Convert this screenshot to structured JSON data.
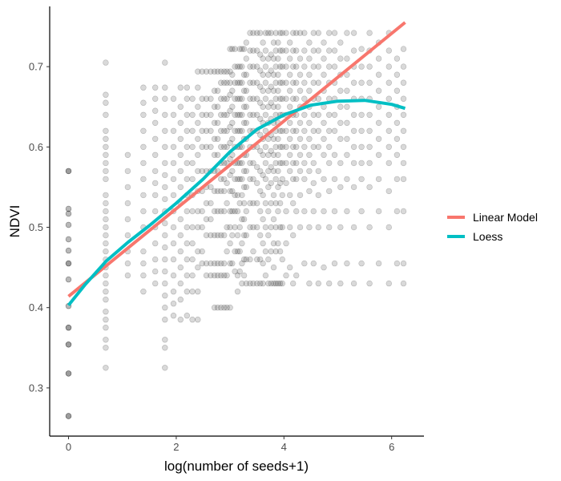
{
  "chart_data": {
    "type": "scatter",
    "xlabel": "log(number of seeds+1)",
    "ylabel": "NDVI",
    "xlim": [
      -0.35,
      6.6
    ],
    "ylim": [
      0.24,
      0.775
    ],
    "x_ticks": [
      0,
      2,
      4,
      6
    ],
    "y_ticks": [
      0.3,
      0.4,
      0.5,
      0.6,
      0.7
    ],
    "grid": false,
    "legend_position": "right",
    "point_color": "#000000",
    "point_alpha": 0.15,
    "series": [
      {
        "name": "Linear Model",
        "kind": "line",
        "color": "#F8766D",
        "x": [
          0,
          6.25
        ],
        "y": [
          0.414,
          0.755
        ]
      },
      {
        "name": "Loess",
        "kind": "line",
        "color": "#00BFC4",
        "x": [
          0,
          0.3,
          0.7,
          1.1,
          1.5,
          2.0,
          2.5,
          3.0,
          3.5,
          4.0,
          4.5,
          5.0,
          5.5,
          6.0,
          6.25
        ],
        "y": [
          0.403,
          0.428,
          0.458,
          0.481,
          0.502,
          0.53,
          0.56,
          0.594,
          0.622,
          0.64,
          0.652,
          0.657,
          0.658,
          0.653,
          0.648
        ]
      }
    ],
    "scatter_columns": [
      {
        "x": 0.0,
        "y": [
          0.265,
          0.265,
          0.265,
          0.318,
          0.318,
          0.318,
          0.354,
          0.354,
          0.354,
          0.375,
          0.375,
          0.375,
          0.402,
          0.402,
          0.435,
          0.435,
          0.455,
          0.455,
          0.455,
          0.471,
          0.471,
          0.485,
          0.485,
          0.503,
          0.503,
          0.517,
          0.517,
          0.523,
          0.523,
          0.57,
          0.57,
          0.57
        ]
      },
      {
        "x": 0.69,
        "y": [
          0.325,
          0.35,
          0.36,
          0.375,
          0.385,
          0.395,
          0.41,
          0.42,
          0.43,
          0.44,
          0.45,
          0.46,
          0.47,
          0.48,
          0.49,
          0.5,
          0.51,
          0.52,
          0.53,
          0.54,
          0.56,
          0.57,
          0.58,
          0.59,
          0.6,
          0.61,
          0.62,
          0.64,
          0.655,
          0.665,
          0.705
        ]
      },
      {
        "x": 1.1,
        "y": [
          0.44,
          0.455,
          0.47,
          0.49,
          0.51,
          0.53,
          0.55,
          0.57,
          0.59
        ]
      },
      {
        "x": 1.39,
        "y": [
          0.42,
          0.44,
          0.455,
          0.47,
          0.5,
          0.52,
          0.54,
          0.56,
          0.58,
          0.6,
          0.62,
          0.64,
          0.655,
          0.674
        ]
      },
      {
        "x": 1.61,
        "y": [
          0.43,
          0.445,
          0.46,
          0.48,
          0.5,
          0.52,
          0.54,
          0.555,
          0.57,
          0.59,
          0.61,
          0.63,
          0.645,
          0.66,
          0.674
        ]
      },
      {
        "x": 1.79,
        "y": [
          0.325,
          0.35,
          0.36,
          0.385,
          0.4,
          0.415,
          0.43,
          0.445,
          0.46,
          0.475,
          0.49,
          0.505,
          0.52,
          0.535,
          0.55,
          0.565,
          0.58,
          0.6,
          0.62,
          0.64,
          0.66,
          0.674,
          0.705
        ]
      },
      {
        "x": 1.95,
        "y": [
          0.39,
          0.405,
          0.42,
          0.44,
          0.46,
          0.48,
          0.5,
          0.52,
          0.54,
          0.56,
          0.58,
          0.6,
          0.62,
          0.64,
          0.66
        ]
      },
      {
        "x": 2.08,
        "y": [
          0.385,
          0.41,
          0.43,
          0.45,
          0.47,
          0.49,
          0.51,
          0.53,
          0.55,
          0.57,
          0.59,
          0.61,
          0.63,
          0.65,
          0.674
        ]
      },
      {
        "x": 2.2,
        "y": [
          0.39,
          0.42,
          0.44,
          0.46,
          0.48,
          0.5,
          0.52,
          0.54,
          0.56,
          0.58,
          0.6,
          0.62,
          0.64,
          0.66,
          0.674
        ]
      },
      {
        "x": 2.3,
        "y": [
          0.385,
          0.42,
          0.44,
          0.46,
          0.48,
          0.5,
          0.52,
          0.54,
          0.56,
          0.58,
          0.6,
          0.62,
          0.64,
          0.66
        ]
      },
      {
        "x": 2.4,
        "y": [
          0.385,
          0.42,
          0.45,
          0.47,
          0.5,
          0.52,
          0.545,
          0.57,
          0.59,
          0.61,
          0.63,
          0.65,
          0.674,
          0.694
        ]
      },
      {
        "x": 2.48,
        "y": [
          0.455,
          0.47,
          0.5,
          0.52,
          0.545,
          0.57,
          0.6,
          0.62,
          0.64,
          0.66,
          0.694
        ]
      },
      {
        "x": 2.56,
        "y": [
          0.44,
          0.455,
          0.49,
          0.51,
          0.53,
          0.55,
          0.57,
          0.6,
          0.62,
          0.64,
          0.66,
          0.694
        ]
      },
      {
        "x": 2.64,
        "y": [
          0.44,
          0.455,
          0.49,
          0.51,
          0.53,
          0.55,
          0.57,
          0.6,
          0.62,
          0.64,
          0.66,
          0.694
        ]
      },
      {
        "x": 2.71,
        "y": [
          0.4,
          0.44,
          0.455,
          0.49,
          0.52,
          0.545,
          0.57,
          0.59,
          0.61,
          0.63,
          0.65,
          0.67,
          0.694
        ]
      },
      {
        "x": 2.77,
        "y": [
          0.4,
          0.44,
          0.455,
          0.49,
          0.52,
          0.545,
          0.57,
          0.59,
          0.61,
          0.63,
          0.65,
          0.67,
          0.694
        ]
      },
      {
        "x": 2.83,
        "y": [
          0.4,
          0.44,
          0.455,
          0.49,
          0.52,
          0.545,
          0.56,
          0.58,
          0.6,
          0.62,
          0.64,
          0.66,
          0.68,
          0.694
        ]
      },
      {
        "x": 2.89,
        "y": [
          0.4,
          0.44,
          0.455,
          0.49,
          0.52,
          0.545,
          0.56,
          0.58,
          0.6,
          0.62,
          0.64,
          0.66,
          0.68,
          0.694
        ]
      },
      {
        "x": 2.94,
        "y": [
          0.4,
          0.44,
          0.47,
          0.5,
          0.53,
          0.555,
          0.58,
          0.6,
          0.62,
          0.64,
          0.66,
          0.68,
          0.694
        ]
      },
      {
        "x": 3.0,
        "y": [
          0.4,
          0.455,
          0.48,
          0.5,
          0.52,
          0.545,
          0.565,
          0.585,
          0.605,
          0.625,
          0.645,
          0.665,
          0.68,
          0.694,
          0.722
        ]
      },
      {
        "x": 3.04,
        "y": [
          0.455,
          0.49,
          0.52,
          0.545,
          0.57,
          0.59,
          0.61,
          0.63,
          0.65,
          0.67,
          0.69,
          0.722
        ]
      },
      {
        "x": 3.09,
        "y": [
          0.445,
          0.47,
          0.5,
          0.52,
          0.54,
          0.56,
          0.58,
          0.6,
          0.62,
          0.64,
          0.66,
          0.68,
          0.7,
          0.722
        ]
      },
      {
        "x": 3.14,
        "y": [
          0.42,
          0.44,
          0.47,
          0.49,
          0.52,
          0.54,
          0.56,
          0.58,
          0.6,
          0.62,
          0.64,
          0.66,
          0.68,
          0.7
        ]
      },
      {
        "x": 3.18,
        "y": [
          0.445,
          0.47,
          0.5,
          0.53,
          0.56,
          0.58,
          0.6,
          0.62,
          0.64,
          0.66,
          0.68,
          0.7,
          0.722
        ]
      },
      {
        "x": 3.22,
        "y": [
          0.43,
          0.455,
          0.48,
          0.51,
          0.54,
          0.56,
          0.58,
          0.6,
          0.62,
          0.64,
          0.66,
          0.68,
          0.7,
          0.722
        ]
      },
      {
        "x": 3.26,
        "y": [
          0.44,
          0.46,
          0.49,
          0.51,
          0.53,
          0.55,
          0.57,
          0.59,
          0.61,
          0.63,
          0.65,
          0.67,
          0.69,
          0.722
        ]
      },
      {
        "x": 3.3,
        "y": [
          0.43,
          0.46,
          0.49,
          0.52,
          0.55,
          0.57,
          0.59,
          0.61,
          0.63,
          0.65,
          0.67,
          0.69,
          0.71,
          0.73
        ]
      },
      {
        "x": 3.37,
        "y": [
          0.43,
          0.46,
          0.5,
          0.53,
          0.56,
          0.58,
          0.6,
          0.62,
          0.64,
          0.66,
          0.68,
          0.7,
          0.72,
          0.742
        ]
      },
      {
        "x": 3.43,
        "y": [
          0.43,
          0.47,
          0.5,
          0.53,
          0.56,
          0.58,
          0.6,
          0.62,
          0.64,
          0.66,
          0.68,
          0.7,
          0.72,
          0.742
        ]
      },
      {
        "x": 3.5,
        "y": [
          0.43,
          0.46,
          0.5,
          0.53,
          0.555,
          0.575,
          0.6,
          0.62,
          0.64,
          0.66,
          0.68,
          0.7,
          0.72,
          0.742
        ]
      },
      {
        "x": 3.56,
        "y": [
          0.43,
          0.46,
          0.49,
          0.52,
          0.545,
          0.57,
          0.595,
          0.615,
          0.635,
          0.655,
          0.675,
          0.695,
          0.715,
          0.742
        ]
      },
      {
        "x": 3.61,
        "y": [
          0.43,
          0.455,
          0.48,
          0.51,
          0.54,
          0.565,
          0.59,
          0.61,
          0.63,
          0.65,
          0.67,
          0.69,
          0.71,
          0.73
        ]
      },
      {
        "x": 3.66,
        "y": [
          0.44,
          0.47,
          0.5,
          0.53,
          0.56,
          0.58,
          0.6,
          0.62,
          0.64,
          0.66,
          0.68,
          0.7,
          0.72,
          0.742
        ]
      },
      {
        "x": 3.71,
        "y": [
          0.43,
          0.46,
          0.49,
          0.52,
          0.55,
          0.57,
          0.59,
          0.61,
          0.63,
          0.65,
          0.67,
          0.69,
          0.71,
          0.742
        ]
      },
      {
        "x": 3.76,
        "y": [
          0.43,
          0.47,
          0.5,
          0.53,
          0.555,
          0.575,
          0.595,
          0.615,
          0.635,
          0.655,
          0.675,
          0.695,
          0.715,
          0.742
        ]
      },
      {
        "x": 3.81,
        "y": [
          0.43,
          0.45,
          0.48,
          0.51,
          0.54,
          0.57,
          0.59,
          0.61,
          0.63,
          0.65,
          0.67,
          0.69,
          0.71,
          0.73
        ]
      },
      {
        "x": 3.85,
        "y": [
          0.43,
          0.47,
          0.5,
          0.53,
          0.56,
          0.58,
          0.6,
          0.62,
          0.64,
          0.66,
          0.68,
          0.7,
          0.72,
          0.742
        ]
      },
      {
        "x": 3.89,
        "y": [
          0.43,
          0.48,
          0.52,
          0.55,
          0.57,
          0.59,
          0.61,
          0.63,
          0.65,
          0.67,
          0.69,
          0.71,
          0.73
        ]
      },
      {
        "x": 3.93,
        "y": [
          0.43,
          0.47,
          0.5,
          0.53,
          0.555,
          0.58,
          0.6,
          0.62,
          0.64,
          0.66,
          0.68,
          0.7,
          0.72,
          0.742
        ]
      },
      {
        "x": 3.97,
        "y": [
          0.43,
          0.46,
          0.5,
          0.54,
          0.56,
          0.58,
          0.6,
          0.62,
          0.64,
          0.66,
          0.68,
          0.7,
          0.72,
          0.742
        ]
      },
      {
        "x": 4.04,
        "y": [
          0.44,
          0.48,
          0.52,
          0.555,
          0.58,
          0.6,
          0.62,
          0.64,
          0.66,
          0.68,
          0.7,
          0.72,
          0.742
        ]
      },
      {
        "x": 4.11,
        "y": [
          0.45,
          0.5,
          0.54,
          0.57,
          0.59,
          0.61,
          0.63,
          0.65,
          0.67,
          0.69,
          0.71,
          0.73
        ]
      },
      {
        "x": 4.17,
        "y": [
          0.43,
          0.49,
          0.53,
          0.56,
          0.58,
          0.6,
          0.62,
          0.64,
          0.66,
          0.68,
          0.7,
          0.72,
          0.742
        ]
      },
      {
        "x": 4.23,
        "y": [
          0.44,
          0.52,
          0.56,
          0.58,
          0.6,
          0.62,
          0.64,
          0.66,
          0.68,
          0.7,
          0.72,
          0.742
        ]
      },
      {
        "x": 4.3,
        "y": [
          0.5,
          0.54,
          0.57,
          0.59,
          0.61,
          0.63,
          0.65,
          0.67,
          0.69,
          0.71,
          0.742
        ]
      },
      {
        "x": 4.38,
        "y": [
          0.455,
          0.52,
          0.56,
          0.58,
          0.6,
          0.62,
          0.64,
          0.66,
          0.68,
          0.7,
          0.72,
          0.742
        ]
      },
      {
        "x": 4.47,
        "y": [
          0.43,
          0.5,
          0.545,
          0.57,
          0.59,
          0.61,
          0.63,
          0.65,
          0.67,
          0.69,
          0.71,
          0.73
        ]
      },
      {
        "x": 4.55,
        "y": [
          0.455,
          0.52,
          0.555,
          0.58,
          0.6,
          0.62,
          0.64,
          0.66,
          0.68,
          0.7,
          0.72,
          0.742
        ]
      },
      {
        "x": 4.64,
        "y": [
          0.43,
          0.5,
          0.54,
          0.57,
          0.6,
          0.62,
          0.64,
          0.66,
          0.68,
          0.7,
          0.72,
          0.742
        ]
      },
      {
        "x": 4.74,
        "y": [
          0.45,
          0.52,
          0.56,
          0.59,
          0.61,
          0.63,
          0.65,
          0.67,
          0.69,
          0.71,
          0.73
        ]
      },
      {
        "x": 4.84,
        "y": [
          0.43,
          0.5,
          0.545,
          0.58,
          0.6,
          0.62,
          0.64,
          0.66,
          0.68,
          0.7,
          0.72,
          0.742
        ]
      },
      {
        "x": 4.94,
        "y": [
          0.455,
          0.52,
          0.56,
          0.59,
          0.62,
          0.64,
          0.66,
          0.68,
          0.7,
          0.72,
          0.742
        ]
      },
      {
        "x": 5.05,
        "y": [
          0.43,
          0.5,
          0.55,
          0.58,
          0.61,
          0.63,
          0.65,
          0.67,
          0.69,
          0.71,
          0.73
        ]
      },
      {
        "x": 5.17,
        "y": [
          0.455,
          0.52,
          0.56,
          0.59,
          0.61,
          0.63,
          0.65,
          0.67,
          0.69,
          0.71,
          0.742
        ]
      },
      {
        "x": 5.3,
        "y": [
          0.43,
          0.5,
          0.55,
          0.58,
          0.6,
          0.62,
          0.64,
          0.66,
          0.68,
          0.7,
          0.72,
          0.742
        ]
      },
      {
        "x": 5.44,
        "y": [
          0.455,
          0.52,
          0.56,
          0.58,
          0.6,
          0.62,
          0.64,
          0.66,
          0.68,
          0.7,
          0.722
        ]
      },
      {
        "x": 5.59,
        "y": [
          0.43,
          0.5,
          0.55,
          0.58,
          0.6,
          0.62,
          0.64,
          0.66,
          0.68,
          0.7,
          0.72,
          0.742
        ]
      },
      {
        "x": 5.76,
        "y": [
          0.455,
          0.52,
          0.56,
          0.59,
          0.61,
          0.63,
          0.65,
          0.67,
          0.69,
          0.71,
          0.73
        ]
      },
      {
        "x": 5.95,
        "y": [
          0.43,
          0.5,
          0.545,
          0.58,
          0.6,
          0.62,
          0.64,
          0.66,
          0.68,
          0.7,
          0.72,
          0.742
        ]
      },
      {
        "x": 6.1,
        "y": [
          0.455,
          0.52,
          0.56,
          0.59,
          0.61,
          0.63,
          0.65,
          0.67,
          0.69,
          0.71
        ]
      },
      {
        "x": 6.22,
        "y": [
          0.43,
          0.455,
          0.52,
          0.56,
          0.58,
          0.6,
          0.62,
          0.64,
          0.66,
          0.68,
          0.7,
          0.722
        ]
      }
    ]
  }
}
